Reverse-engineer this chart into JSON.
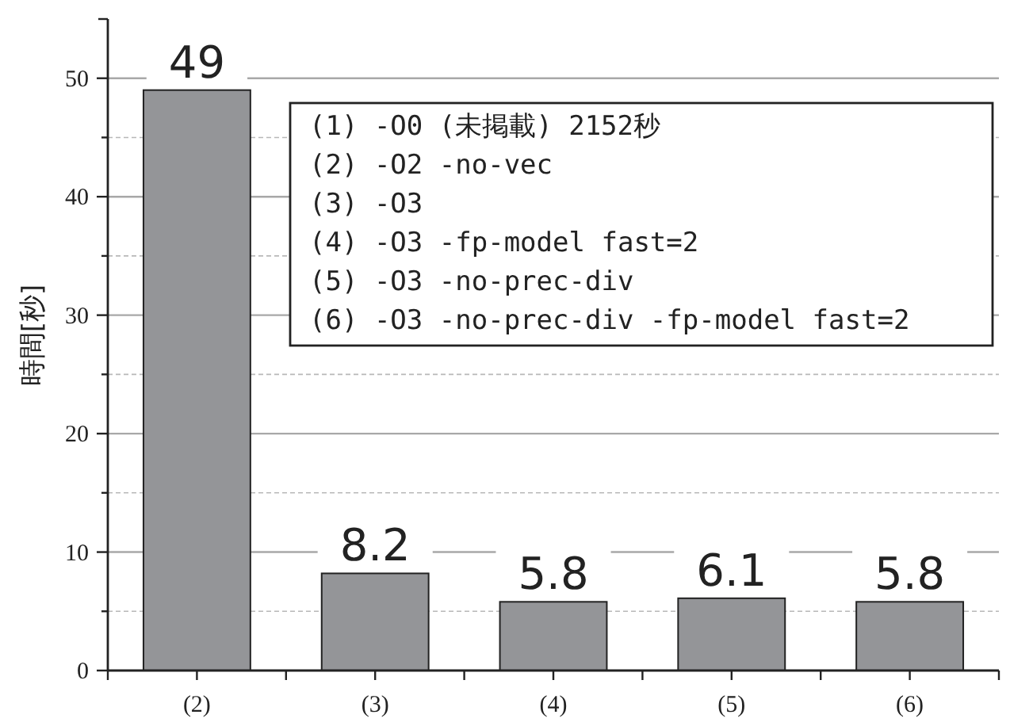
{
  "chart_data": {
    "type": "bar",
    "ylabel": "時間[秒]",
    "categories": [
      "(2)",
      "(3)",
      "(4)",
      "(5)",
      "(6)"
    ],
    "values": [
      49,
      8.2,
      5.8,
      6.1,
      5.8
    ],
    "color": "#949598",
    "data_labels": true,
    "ylim": [
      0,
      55
    ],
    "yticks": [
      0,
      {
        "value": 5,
        "label": null
      },
      10,
      {
        "value": 15,
        "label": null
      },
      20,
      {
        "value": 25,
        "label": null
      },
      30,
      {
        "value": 35,
        "label": null
      },
      40,
      {
        "value": 45,
        "label": null
      },
      50
    ],
    "grid": "y",
    "annotations": [
      "(1) -O0 (未掲載) 2152秒",
      "(2) -O2 -no-vec",
      "(3) -O3",
      "(4) -O3 -fp-model fast=2",
      "(5) -O3 -no-prec-div",
      "(6) -O3 -no-prec-div -fp-model fast=2"
    ]
  }
}
